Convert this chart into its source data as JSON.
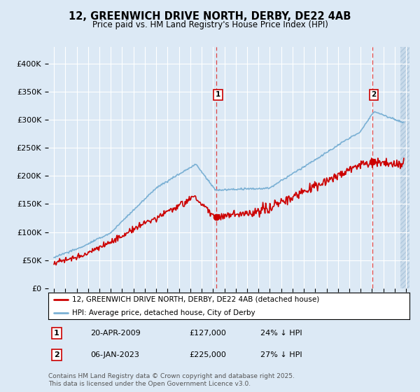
{
  "title": "12, GREENWICH DRIVE NORTH, DERBY, DE22 4AB",
  "subtitle": "Price paid vs. HM Land Registry's House Price Index (HPI)",
  "background_color": "#dce9f5",
  "plot_bg_color": "#dce9f5",
  "ylabel_values": [
    "£0",
    "£50K",
    "£100K",
    "£150K",
    "£200K",
    "£250K",
    "£300K",
    "£350K",
    "£400K"
  ],
  "yticks": [
    0,
    50000,
    100000,
    150000,
    200000,
    250000,
    300000,
    350000,
    400000
  ],
  "ylim": [
    0,
    430000
  ],
  "xlim_start": 1994.5,
  "xlim_end": 2026.3,
  "marker1_x": 2009.3,
  "marker1_y": 127000,
  "marker2_x": 2023.02,
  "marker2_y": 225000,
  "legend_line1": "12, GREENWICH DRIVE NORTH, DERBY, DE22 4AB (detached house)",
  "legend_line2": "HPI: Average price, detached house, City of Derby",
  "footer": "Contains HM Land Registry data © Crown copyright and database right 2025.\nThis data is licensed under the Open Government Licence v3.0.",
  "red_color": "#cc0000",
  "hpi_color": "#7ab0d4",
  "vline_color": "#dd4444",
  "grid_color": "#ffffff",
  "hatch_color": "#c8d8e8"
}
